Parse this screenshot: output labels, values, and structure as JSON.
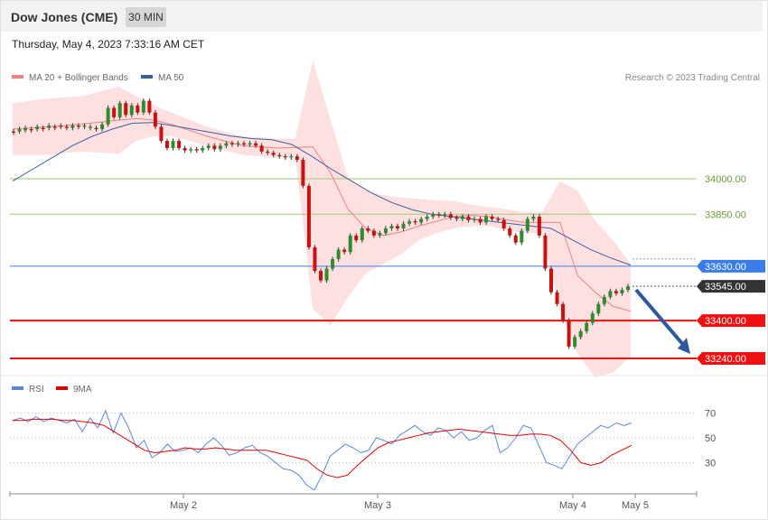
{
  "header": {
    "title": "Dow Jones (CME)",
    "timeframe": "30 MIN"
  },
  "timestamp": "Thursday, May 4, 2023 7:33:16 AM CET",
  "legend": {
    "ma20": {
      "label": "MA 20 + Bollinger Bands",
      "color": "#f08080"
    },
    "ma50": {
      "label": "MA 50",
      "color": "#3a5f9e"
    },
    "credit": "Research © 2023 Trading Central"
  },
  "rsi_legend": {
    "rsi": {
      "label": "RSI",
      "color": "#5b86d8"
    },
    "ma9": {
      "label": "9MA",
      "color": "#e00000"
    }
  },
  "colors": {
    "up_candle": "#2e8b2e",
    "down_candle": "#cc1010",
    "band_fill": "#ffe0e0",
    "level_green": "#9acd70",
    "level_blue": "#3a7de8",
    "level_red": "#ee1111",
    "arrow": "#2d5a9e"
  },
  "chart_data": [
    {
      "type": "line",
      "title": "",
      "x_labels": [
        "May 2",
        "May 3",
        "May 4",
        "May 5"
      ],
      "ylim": [
        33150,
        34450
      ],
      "levels": [
        {
          "value": 34000.0,
          "label": "34000.00",
          "style": "green"
        },
        {
          "value": 33850.0,
          "label": "33850.00",
          "style": "green"
        },
        {
          "value": 33630.0,
          "label": "33630.00",
          "style": "blue"
        },
        {
          "value": 33545.0,
          "label": "33545.00",
          "style": "last"
        },
        {
          "value": 33400.0,
          "label": "33400.00",
          "style": "red"
        },
        {
          "value": 33240.0,
          "label": "33240.00",
          "style": "red"
        }
      ],
      "series": [
        {
          "name": "MA 20 + Bollinger Bands",
          "ma": [
            34210,
            34215,
            34220,
            34225,
            34232,
            34240,
            34248,
            34255,
            34248,
            34230,
            34205,
            34180,
            34160,
            34140,
            34135,
            34130,
            34132,
            34135,
            34025,
            33870,
            33790,
            33760,
            33775,
            33800,
            33820,
            33840,
            33845,
            33840,
            33825,
            33815,
            33815,
            33815,
            33590,
            33520,
            33460,
            33440
          ],
          "upper": [
            34320,
            34330,
            34340,
            34345,
            34350,
            34370,
            34390,
            34350,
            34310,
            34280,
            34250,
            34220,
            34200,
            34180,
            34175,
            34170,
            34170,
            34500,
            34250,
            34000,
            33950,
            33930,
            33920,
            33915,
            33910,
            33905,
            33890,
            33880,
            33870,
            33860,
            33860,
            33990,
            33950,
            33820,
            33740,
            33640
          ],
          "lower": [
            34100,
            34100,
            34100,
            34110,
            34115,
            34110,
            34105,
            34160,
            34180,
            34180,
            34160,
            34140,
            34120,
            34100,
            34095,
            34090,
            34095,
            33450,
            33380,
            33500,
            33600,
            33640,
            33680,
            33740,
            33770,
            33790,
            33800,
            33800,
            33780,
            33770,
            33770,
            33440,
            33260,
            33160,
            33180,
            33250
          ]
        },
        {
          "name": "MA 50",
          "values": [
            33990,
            34040,
            34090,
            34140,
            34180,
            34210,
            34235,
            34238,
            34225,
            34210,
            34195,
            34180,
            34170,
            34165,
            34145,
            34095,
            34040,
            33990,
            33940,
            33900,
            33870,
            33850,
            33840,
            33830,
            33820,
            33810,
            33800,
            33790,
            33745,
            33700,
            33665,
            33635
          ]
        }
      ],
      "candles": [
        [
          34200,
          34195
        ],
        [
          34200,
          34210
        ],
        [
          34205,
          34215
        ],
        [
          34210,
          34205
        ],
        [
          34210,
          34220
        ],
        [
          34215,
          34210
        ],
        [
          34215,
          34225
        ],
        [
          34220,
          34215
        ],
        [
          34225,
          34220
        ],
        [
          34220,
          34215
        ],
        [
          34215,
          34225
        ],
        [
          34225,
          34220
        ],
        [
          34220,
          34225
        ],
        [
          34215,
          34220
        ],
        [
          34215,
          34210
        ],
        [
          34210,
          34230
        ],
        [
          34230,
          34300
        ],
        [
          34300,
          34260
        ],
        [
          34260,
          34320
        ],
        [
          34320,
          34270
        ],
        [
          34270,
          34310
        ],
        [
          34310,
          34280
        ],
        [
          34280,
          34330
        ],
        [
          34330,
          34280
        ],
        [
          34280,
          34220
        ],
        [
          34220,
          34160
        ],
        [
          34160,
          34130
        ],
        [
          34130,
          34160
        ],
        [
          34160,
          34130
        ],
        [
          34130,
          34120
        ],
        [
          34120,
          34125
        ],
        [
          34125,
          34120
        ],
        [
          34120,
          34130
        ],
        [
          34130,
          34140
        ],
        [
          34140,
          34125
        ],
        [
          34125,
          34140
        ],
        [
          34140,
          34150
        ],
        [
          34150,
          34145
        ],
        [
          34145,
          34150
        ],
        [
          34150,
          34145
        ],
        [
          34145,
          34150
        ],
        [
          34150,
          34140
        ],
        [
          34140,
          34115
        ],
        [
          34115,
          34110
        ],
        [
          34110,
          34100
        ],
        [
          34100,
          34095
        ],
        [
          34095,
          34090
        ],
        [
          34090,
          34095
        ],
        [
          34095,
          34080
        ],
        [
          34080,
          33970
        ],
        [
          33970,
          33710
        ],
        [
          33710,
          33610
        ],
        [
          33610,
          33570
        ],
        [
          33570,
          33620
        ],
        [
          33620,
          33660
        ],
        [
          33660,
          33700
        ],
        [
          33700,
          33690
        ],
        [
          33690,
          33760
        ],
        [
          33760,
          33740
        ],
        [
          33740,
          33790
        ],
        [
          33790,
          33780
        ],
        [
          33780,
          33760
        ],
        [
          33760,
          33770
        ],
        [
          33770,
          33790
        ],
        [
          33790,
          33800
        ],
        [
          33800,
          33790
        ],
        [
          33790,
          33810
        ],
        [
          33810,
          33820
        ],
        [
          33820,
          33815
        ],
        [
          33815,
          33830
        ],
        [
          33830,
          33840
        ],
        [
          33840,
          33850
        ],
        [
          33850,
          33845
        ],
        [
          33845,
          33850
        ],
        [
          33850,
          33835
        ],
        [
          33835,
          33830
        ],
        [
          33830,
          33840
        ],
        [
          33840,
          33825
        ],
        [
          33825,
          33830
        ],
        [
          33830,
          33815
        ],
        [
          33815,
          33840
        ],
        [
          33840,
          33830
        ],
        [
          33830,
          33825
        ],
        [
          33825,
          33790
        ],
        [
          33790,
          33760
        ],
        [
          33760,
          33730
        ],
        [
          33730,
          33780
        ],
        [
          33780,
          33830
        ],
        [
          33830,
          33840
        ],
        [
          33840,
          33760
        ],
        [
          33760,
          33620
        ],
        [
          33620,
          33520
        ],
        [
          33520,
          33470
        ],
        [
          33470,
          33400
        ],
        [
          33400,
          33290
        ],
        [
          33290,
          33330
        ],
        [
          33330,
          33355
        ],
        [
          33355,
          33390
        ],
        [
          33390,
          33430
        ],
        [
          33430,
          33470
        ],
        [
          33470,
          33500
        ],
        [
          33500,
          33525
        ],
        [
          33525,
          33515
        ],
        [
          33515,
          33530
        ],
        [
          33530,
          33545
        ]
      ]
    },
    {
      "type": "line",
      "title": "",
      "ylim": [
        0,
        100
      ],
      "ticks": [
        "70",
        "50",
        "30"
      ],
      "series": [
        {
          "name": "RSI",
          "values": [
            64,
            66,
            63,
            67,
            63,
            66,
            64,
            62,
            65,
            55,
            66,
            58,
            72,
            54,
            70,
            58,
            42,
            48,
            34,
            38,
            45,
            39,
            40,
            42,
            38,
            45,
            50,
            44,
            36,
            38,
            42,
            44,
            38,
            35,
            30,
            25,
            24,
            20,
            12,
            8,
            20,
            35,
            40,
            45,
            42,
            38,
            40,
            50,
            48,
            45,
            52,
            56,
            60,
            55,
            52,
            58,
            56,
            50,
            55,
            48,
            50,
            56,
            60,
            38,
            42,
            50,
            60,
            58,
            44,
            30,
            28,
            25,
            35,
            45,
            50,
            55,
            60,
            58,
            62,
            60,
            62
          ]
        },
        {
          "name": "9MA",
          "values": [
            64,
            64,
            65,
            65,
            65,
            64,
            64,
            63,
            62,
            60,
            55,
            50,
            45,
            40,
            38,
            39,
            40,
            42,
            41,
            41,
            42,
            41,
            40,
            40,
            40,
            40,
            38,
            36,
            34,
            32,
            25,
            20,
            18,
            20,
            28,
            35,
            42,
            46,
            48,
            50,
            52,
            54,
            55,
            56,
            57,
            56,
            55,
            54,
            53,
            52,
            52,
            53,
            53,
            52,
            48,
            40,
            30,
            28,
            30,
            36,
            40,
            44
          ]
        }
      ]
    }
  ],
  "arrow": {
    "from": 33530,
    "to": 33240
  }
}
